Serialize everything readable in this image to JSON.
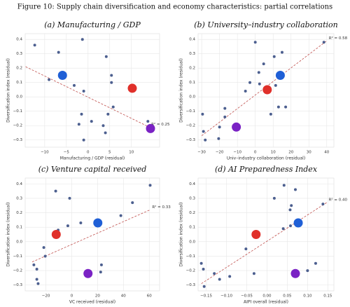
{
  "title": "Figure 10: Supply chain diversification and economy characteristics: partial correlations",
  "chart_data": [
    {
      "type": "scatter",
      "title": "(a) Manufacturing / GDP",
      "x_label": "Manufacturing / GDP (residual)",
      "y_label": "Diversification index (residual)",
      "xlim": [
        -14.5,
        16.5
      ],
      "ylim": [
        -0.35,
        0.44
      ],
      "xticks": [
        {
          "value": -10,
          "label": "−10"
        },
        {
          "value": -5,
          "label": "−5"
        },
        0,
        5,
        10
      ],
      "yticks": [
        {
          "value": -0.3,
          "label": "−0.3"
        },
        {
          "value": -0.2,
          "label": "−0.2"
        },
        {
          "value": -0.1,
          "label": "−0.1"
        },
        {
          "value": 0,
          "label": "0.0"
        },
        0.1,
        0.2,
        0.3,
        0.4
      ],
      "grid": true,
      "color": "#4c5f8f",
      "x": [
        -12.3,
        -6.8,
        -1.3,
        4.2,
        -9,
        -3.2,
        -1,
        5.4,
        5.4,
        -1.5,
        0.8,
        3.5,
        4.6,
        5.8,
        -2.1,
        4,
        -1,
        13.8
      ],
      "y": [
        0.36,
        0.31,
        0.4,
        0.28,
        0.12,
        0.08,
        0.04,
        0.15,
        0.1,
        -0.12,
        -0.17,
        -0.2,
        -0.12,
        -0.07,
        -0.19,
        -0.25,
        -0.3,
        -0.17
      ],
      "highlight_points": [
        {
          "x": -5.9,
          "y": 0.15,
          "color": "#1f5fd6"
        },
        {
          "x": 10.2,
          "y": 0.06,
          "color": "#e0302a"
        },
        {
          "x": 14.4,
          "y": -0.22,
          "color": "#7a22c4"
        }
      ],
      "fit": {
        "x": [
          -14.4,
          14.1
        ],
        "y": [
          0.21,
          -0.21
        ],
        "color": "#c0504d"
      },
      "annotation": "R² = 0.25"
    },
    {
      "type": "scatter",
      "title": "(b) University–industry collaboration",
      "x_label": "Univ–industry collaboration (residual)",
      "y_label": "Diversification index (residual)",
      "xlim": [
        -32,
        44
      ],
      "ylim": [
        -0.35,
        0.44
      ],
      "xticks": [
        {
          "value": -30,
          "label": "−30"
        },
        {
          "value": -20,
          "label": "−20"
        },
        {
          "value": -10,
          "label": "−10"
        },
        0,
        10,
        20,
        30,
        40
      ],
      "yticks": [
        {
          "value": -0.3,
          "label": "−0.3"
        },
        {
          "value": -0.2,
          "label": "−0.2"
        },
        {
          "value": -0.1,
          "label": "−0.1"
        },
        {
          "value": 0,
          "label": "0.0"
        },
        0.1,
        0.2,
        0.3,
        0.4
      ],
      "grid": true,
      "color": "#4c5f8f",
      "x": [
        -29.5,
        -29,
        -28,
        -17,
        -17,
        -20,
        -20.5,
        -5.5,
        -3,
        2,
        2.4,
        4.7,
        10.6,
        15,
        0,
        8.7,
        13,
        17,
        11.4,
        38.4
      ],
      "y": [
        -0.12,
        -0.24,
        -0.3,
        -0.14,
        -0.08,
        -0.21,
        -0.29,
        0.04,
        0.1,
        0.17,
        0.09,
        0.23,
        0.28,
        0.31,
        0.38,
        -0.12,
        -0.07,
        -0.07,
        0.08,
        0.38
      ],
      "highlight_points": [
        {
          "x": 14,
          "y": 0.15,
          "color": "#1f5fd6"
        },
        {
          "x": 6.7,
          "y": 0.05,
          "color": "#e0302a"
        },
        {
          "x": -10.6,
          "y": -0.21,
          "color": "#7a22c4"
        }
      ],
      "fit": {
        "x": [
          -30,
          40
        ],
        "y": [
          -0.27,
          0.39
        ],
        "color": "#c0504d"
      },
      "annotation": "R² = 0.58"
    },
    {
      "type": "scatter",
      "title": "(c) Venture capital received",
      "x_label": "VC received (residual)",
      "y_label": "Diversification index (residual)",
      "xlim": [
        -36,
        68
      ],
      "ylim": [
        -0.34,
        0.44
      ],
      "xticks": [
        {
          "value": -20,
          "label": "−20"
        },
        0,
        20,
        40,
        60
      ],
      "yticks": [
        {
          "value": -0.3,
          "label": "−0.3"
        },
        {
          "value": -0.2,
          "label": "−0.2"
        },
        {
          "value": -0.1,
          "label": "−0.1"
        },
        {
          "value": 0,
          "label": "0.0"
        },
        0.1,
        0.2,
        0.3,
        0.4
      ],
      "grid": true,
      "color": "#4c5f8f",
      "x": [
        -12.4,
        -1.6,
        60.7,
        47,
        38,
        7,
        -3,
        -10.5,
        -21.6,
        -20.5,
        -29.3,
        -27,
        -27,
        -26,
        23,
        22.4
      ],
      "y": [
        0.35,
        0.3,
        0.39,
        0.27,
        0.18,
        0.13,
        0.11,
        0.08,
        -0.04,
        -0.1,
        -0.16,
        -0.19,
        -0.26,
        -0.29,
        -0.16,
        -0.21
      ],
      "highlight_points": [
        {
          "x": 20.2,
          "y": 0.13,
          "color": "#1f5fd6"
        },
        {
          "x": -12,
          "y": 0.05,
          "color": "#e0302a"
        },
        {
          "x": 12.6,
          "y": -0.22,
          "color": "#7a22c4"
        }
      ],
      "fit": {
        "x": [
          -30.6,
          60.6
        ],
        "y": [
          -0.14,
          0.22
        ],
        "color": "#c0504d"
      },
      "annotation": "R² = 0.33"
    },
    {
      "type": "scatter",
      "title": "(d) AI Preparedness Index",
      "x_label": "AIPI overall (residual)",
      "y_label": "Diversification index (residual)",
      "xlim": [
        -0.17,
        0.165
      ],
      "ylim": [
        -0.34,
        0.44
      ],
      "xticks": [
        {
          "value": -0.15,
          "label": "−0.15"
        },
        {
          "value": -0.1,
          "label": "−0.10"
        },
        {
          "value": -0.05,
          "label": "−0.05"
        },
        {
          "value": 0,
          "label": "0.00"
        },
        0.05,
        {
          "value": 0.1,
          "label": "0.10"
        },
        0.15
      ],
      "yticks": [
        {
          "value": -0.3,
          "label": "−0.3"
        },
        {
          "value": -0.2,
          "label": "−0.2"
        },
        {
          "value": -0.1,
          "label": "−0.1"
        },
        {
          "value": 0,
          "label": "0.0"
        },
        0.1,
        0.2,
        0.3,
        0.4
      ],
      "grid": true,
      "color": "#4c5f8f",
      "x": [
        -0.162,
        -0.157,
        -0.13,
        -0.117,
        -0.092,
        -0.155,
        -0.052,
        -0.032,
        0.018,
        0.042,
        0.07,
        0.06,
        0.057,
        0.04,
        0.058,
        0.1,
        0.12,
        0.138
      ],
      "y": [
        -0.15,
        -0.19,
        -0.22,
        -0.26,
        -0.24,
        -0.31,
        -0.05,
        -0.22,
        0.3,
        0.39,
        0.36,
        0.25,
        0.22,
        0.09,
        0.11,
        -0.2,
        -0.15,
        0.26
      ],
      "highlight_points": [
        {
          "x": 0.077,
          "y": 0.13,
          "color": "#1f5fd6"
        },
        {
          "x": -0.027,
          "y": 0.05,
          "color": "#e0302a"
        },
        {
          "x": 0.07,
          "y": -0.22,
          "color": "#7a22c4"
        }
      ],
      "fit": {
        "x": [
          -0.162,
          0.147
        ],
        "y": [
          -0.29,
          0.27
        ],
        "color": "#c0504d"
      },
      "annotation": "R² = 0.40"
    }
  ]
}
